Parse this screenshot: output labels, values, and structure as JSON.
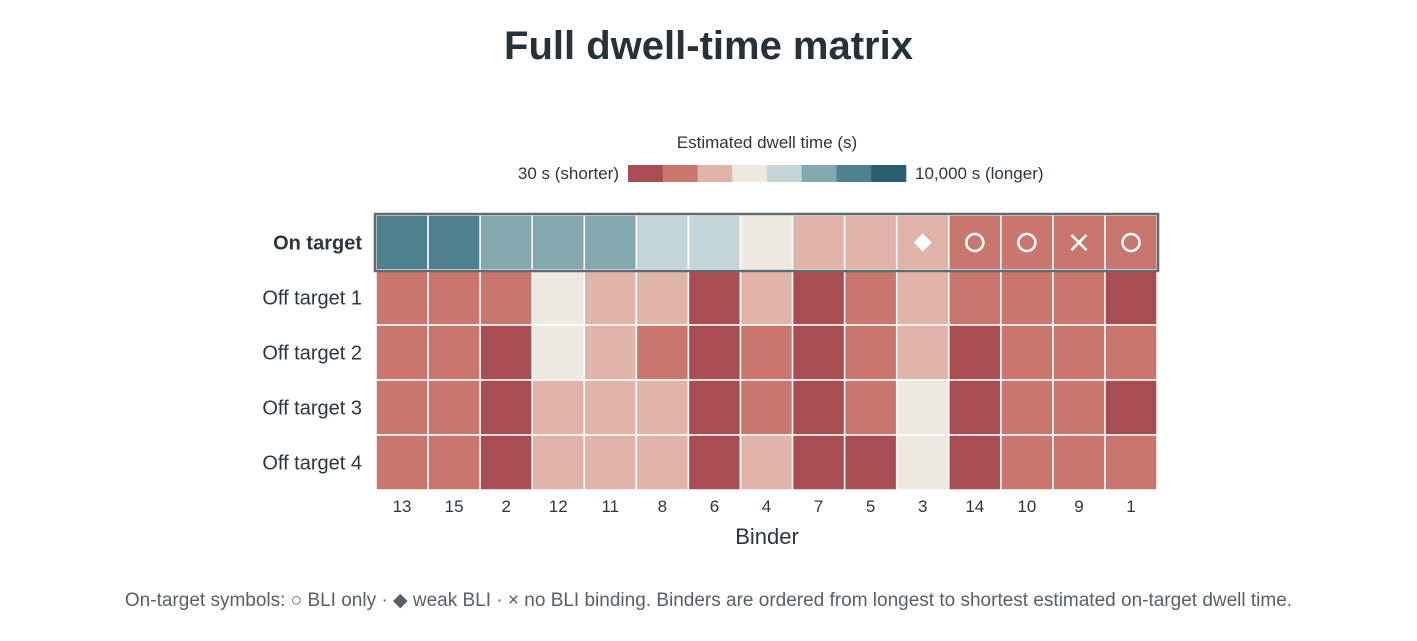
{
  "chart_data": {
    "type": "heatmap",
    "title": "Full dwell-time matrix",
    "xlabel": "Binder",
    "ylabel": "",
    "colorbar": {
      "title": "Estimated dwell time (s)",
      "low_label": "30 s (shorter)",
      "high_label": "10,000 s (longer)",
      "range": [
        30,
        10000
      ],
      "scale": "log",
      "colors": [
        "#a84e53",
        "#c8766e",
        "#e0b4a8",
        "#ede9e0",
        "#c3d5d6",
        "#84a8b0",
        "#4e808e",
        "#2b5e6e"
      ]
    },
    "rows": [
      "On target",
      "Off target 1",
      "Off target 2",
      "Off target 3",
      "Off target 4"
    ],
    "highlighted_row": "On target",
    "columns": [
      "13",
      "15",
      "2",
      "12",
      "11",
      "8",
      "6",
      "4",
      "7",
      "5",
      "3",
      "14",
      "10",
      "9",
      "1"
    ],
    "levels": [
      [
        6,
        6,
        5,
        5,
        5,
        4,
        4,
        3,
        2,
        2,
        2,
        1,
        1,
        1,
        1
      ],
      [
        1,
        1,
        1,
        3,
        2,
        2,
        0,
        2,
        0,
        1,
        2,
        1,
        1,
        1,
        0
      ],
      [
        1,
        1,
        0,
        3,
        2,
        1,
        0,
        1,
        0,
        1,
        2,
        0,
        1,
        1,
        1
      ],
      [
        1,
        1,
        0,
        2,
        2,
        2,
        0,
        1,
        0,
        1,
        3,
        0,
        1,
        1,
        0
      ],
      [
        1,
        1,
        0,
        2,
        2,
        2,
        0,
        2,
        0,
        0,
        3,
        0,
        1,
        1,
        1
      ]
    ],
    "on_target_symbols": [
      "",
      "",
      "",
      "",
      "",
      "",
      "",
      "",
      "",
      "",
      "diamond",
      "circle",
      "circle",
      "cross",
      "circle"
    ]
  },
  "footnote": "On-target symbols: ○ BLI only · ◆ weak BLI · × no BLI binding. Binders are ordered from longest to shortest estimated on-target dwell time."
}
